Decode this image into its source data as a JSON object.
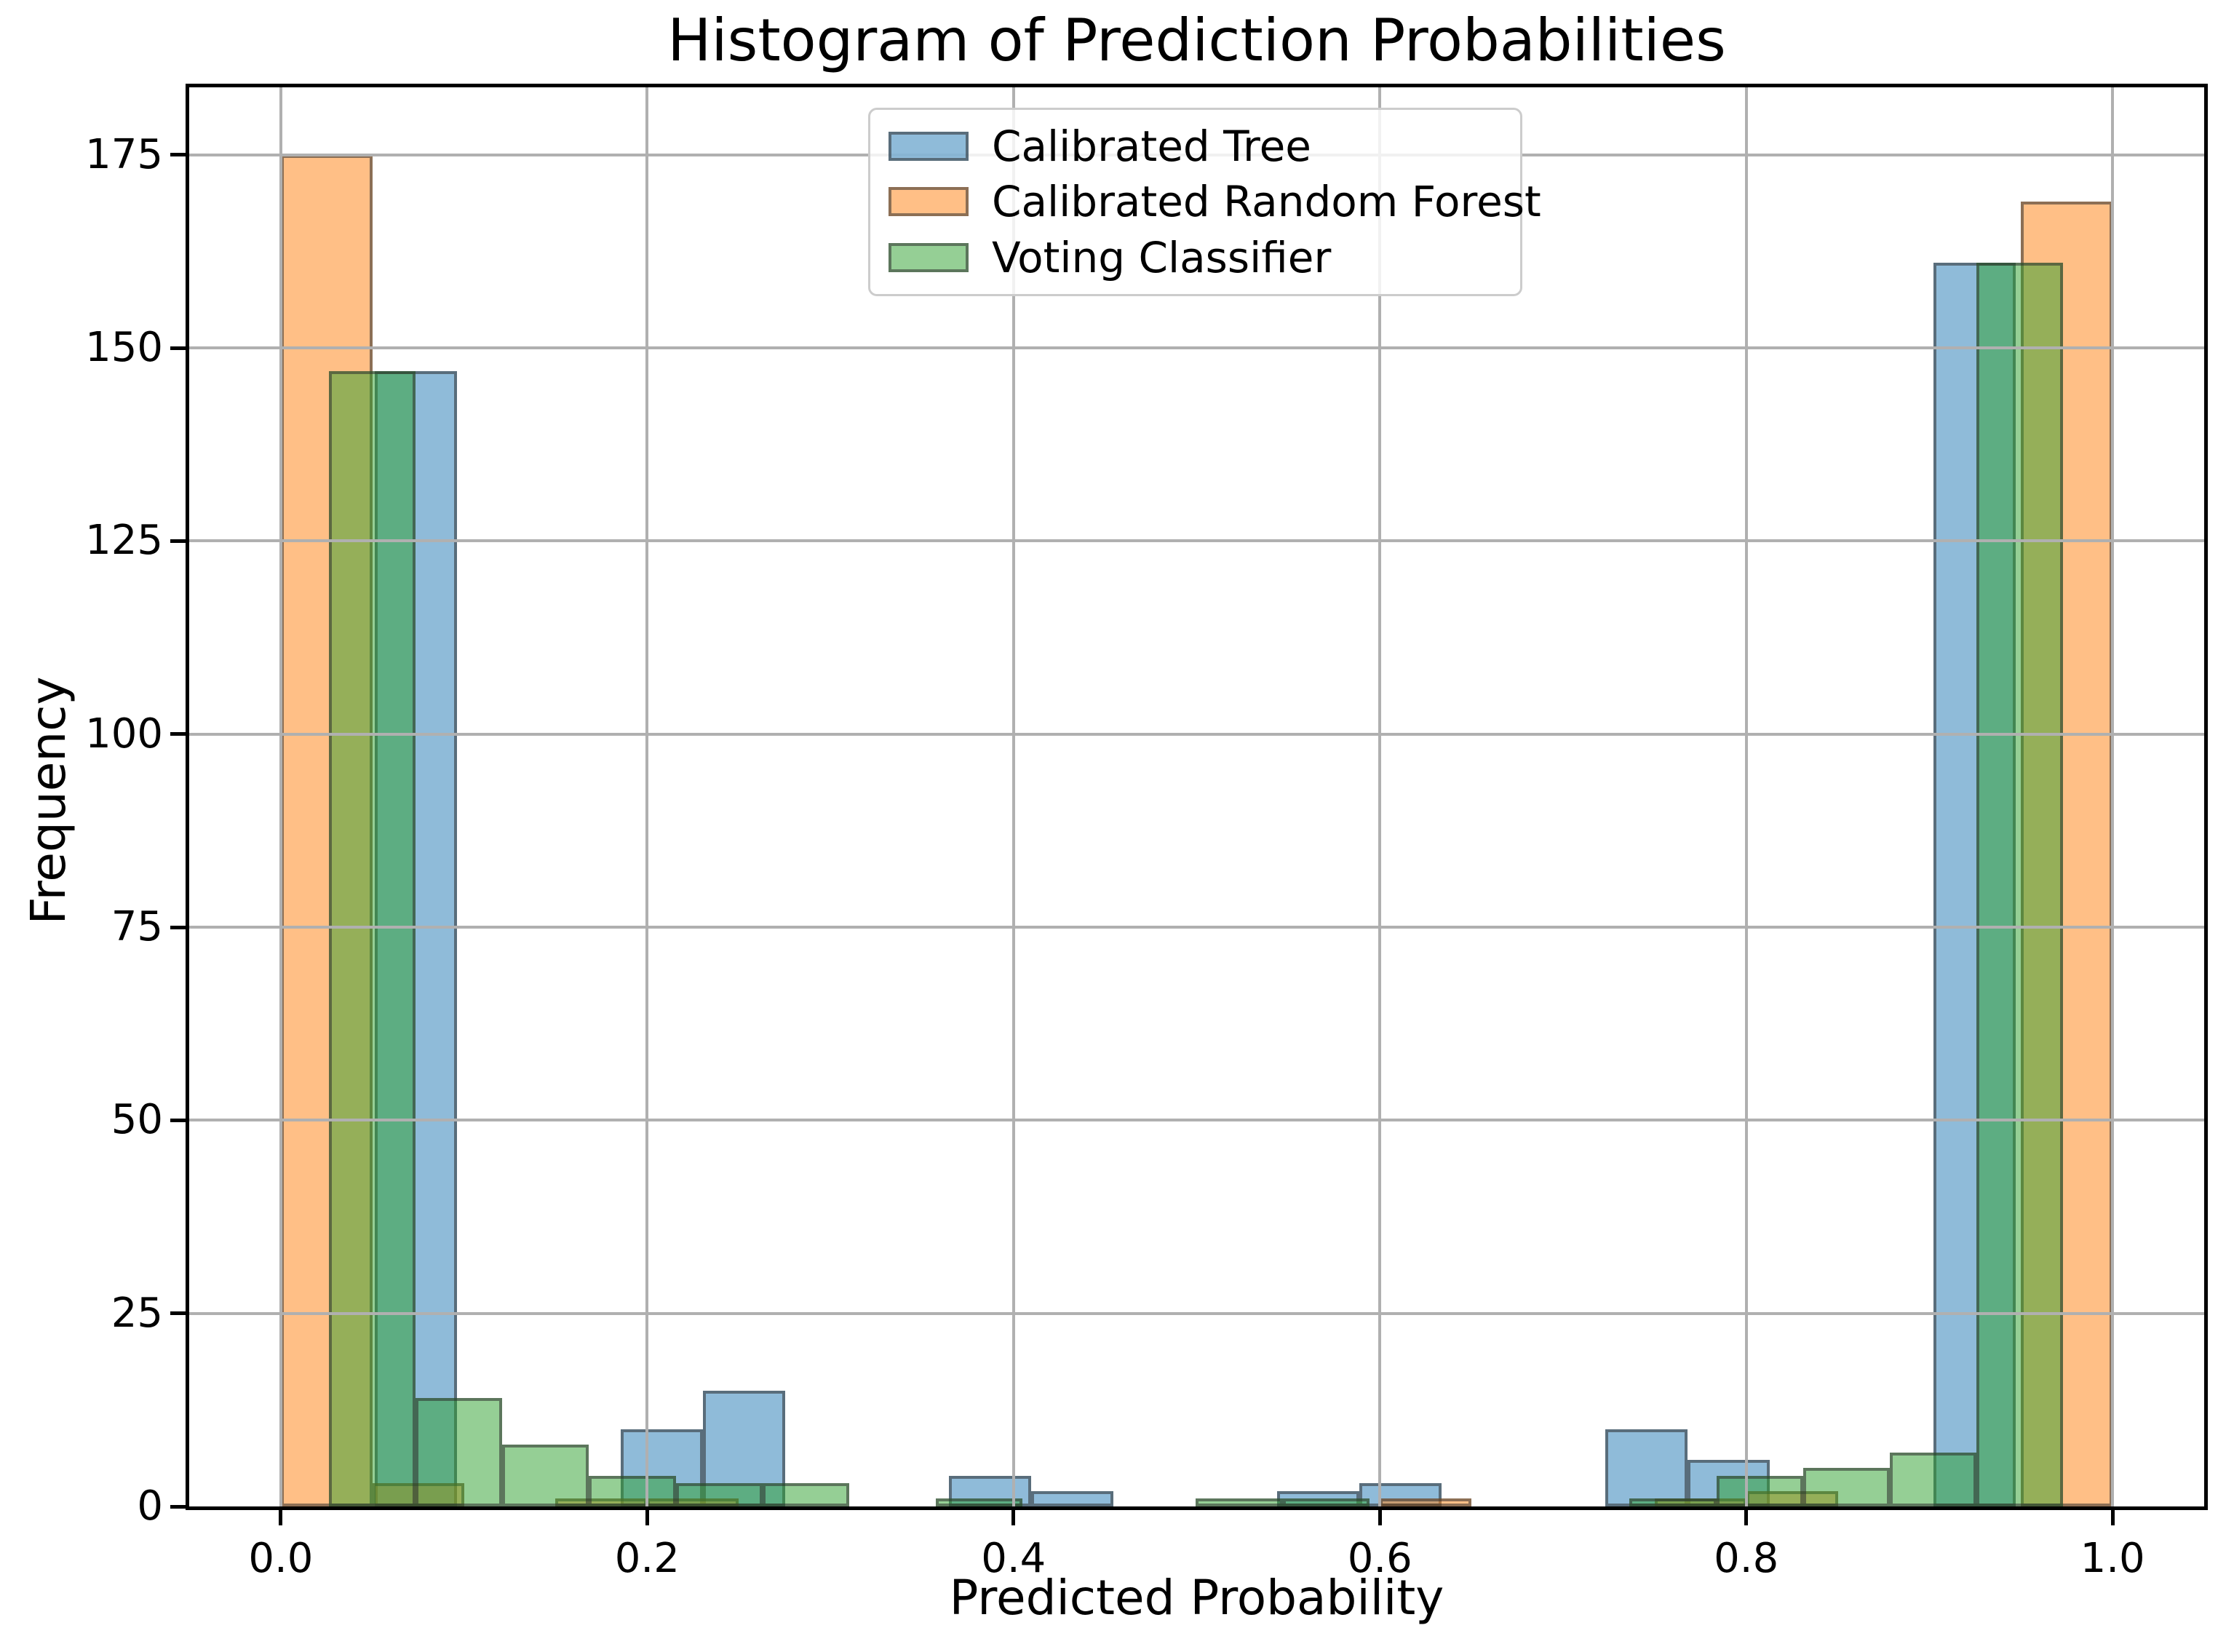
{
  "chart_data": {
    "type": "histogram",
    "title": "Histogram of Prediction Probabilities",
    "xlabel": "Predicted Probability",
    "ylabel": "Frequency",
    "xlim": [
      -0.05,
      1.05
    ],
    "ylim": [
      0,
      183.75
    ],
    "grid": true,
    "xticks": [
      {
        "value": 0.0,
        "label": "0.0"
      },
      {
        "value": 0.2,
        "label": "0.2"
      },
      {
        "value": 0.4,
        "label": "0.4"
      },
      {
        "value": 0.6,
        "label": "0.6"
      },
      {
        "value": 0.8,
        "label": "0.8"
      },
      {
        "value": 1.0,
        "label": "1.0"
      }
    ],
    "yticks": [
      {
        "value": 0,
        "label": "0"
      },
      {
        "value": 25,
        "label": "25"
      },
      {
        "value": 50,
        "label": "50"
      },
      {
        "value": 75,
        "label": "75"
      },
      {
        "value": 100,
        "label": "100"
      },
      {
        "value": 125,
        "label": "125"
      },
      {
        "value": 150,
        "label": "150"
      },
      {
        "value": 175,
        "label": "175"
      }
    ],
    "style": {
      "bar_alpha": 0.5,
      "bar_edge_color": "rgba(45,45,45,0.55)",
      "grid_color": "#b0b0b0",
      "axis_color": "#000000",
      "background": "#ffffff",
      "legend_frame_alpha": 0.82
    },
    "legend": {
      "location": "upper center",
      "entries": [
        "Calibrated Tree",
        "Calibrated Random Forest",
        "Voting Classifier"
      ]
    },
    "series": [
      {
        "name": "Calibrated Tree",
        "color": "#1f77b4",
        "bars": [
          {
            "x0": 0.0512,
            "x1": 0.096,
            "count": 147
          },
          {
            "x0": 0.1856,
            "x1": 0.2304,
            "count": 10
          },
          {
            "x0": 0.2304,
            "x1": 0.2752,
            "count": 15
          },
          {
            "x0": 0.3648,
            "x1": 0.4096,
            "count": 4
          },
          {
            "x0": 0.4096,
            "x1": 0.4544,
            "count": 2
          },
          {
            "x0": 0.544,
            "x1": 0.5888,
            "count": 2
          },
          {
            "x0": 0.5888,
            "x1": 0.6336,
            "count": 3
          },
          {
            "x0": 0.7232,
            "x1": 0.768,
            "count": 10
          },
          {
            "x0": 0.768,
            "x1": 0.8128,
            "count": 6
          },
          {
            "x0": 0.9024,
            "x1": 0.9472,
            "count": 161
          }
        ]
      },
      {
        "name": "Calibrated Random Forest",
        "color": "#ff7f0e",
        "bars": [
          {
            "x0": 0.0,
            "x1": 0.05,
            "count": 175
          },
          {
            "x0": 0.05,
            "x1": 0.1,
            "count": 3
          },
          {
            "x0": 0.15,
            "x1": 0.2,
            "count": 1
          },
          {
            "x0": 0.2,
            "x1": 0.25,
            "count": 1
          },
          {
            "x0": 0.6,
            "x1": 0.65,
            "count": 1
          },
          {
            "x0": 0.75,
            "x1": 0.8,
            "count": 1
          },
          {
            "x0": 0.8,
            "x1": 0.85,
            "count": 2
          },
          {
            "x0": 0.95,
            "x1": 1.0,
            "count": 169
          }
        ]
      },
      {
        "name": "Voting Classifier",
        "color": "#2ca02c",
        "bars": [
          {
            "x0": 0.0262,
            "x1": 0.0736,
            "count": 147
          },
          {
            "x0": 0.0736,
            "x1": 0.1209,
            "count": 14
          },
          {
            "x0": 0.1209,
            "x1": 0.1682,
            "count": 8
          },
          {
            "x0": 0.1682,
            "x1": 0.2156,
            "count": 4
          },
          {
            "x0": 0.2156,
            "x1": 0.2629,
            "count": 3
          },
          {
            "x0": 0.2629,
            "x1": 0.3103,
            "count": 3
          },
          {
            "x0": 0.3576,
            "x1": 0.4049,
            "count": 1
          },
          {
            "x0": 0.4996,
            "x1": 0.547,
            "count": 1
          },
          {
            "x0": 0.547,
            "x1": 0.5943,
            "count": 1
          },
          {
            "x0": 0.7363,
            "x1": 0.7837,
            "count": 1
          },
          {
            "x0": 0.7837,
            "x1": 0.831,
            "count": 4
          },
          {
            "x0": 0.831,
            "x1": 0.8784,
            "count": 5
          },
          {
            "x0": 0.8784,
            "x1": 0.9257,
            "count": 7
          },
          {
            "x0": 0.9257,
            "x1": 0.9731,
            "count": 161
          }
        ]
      }
    ]
  }
}
